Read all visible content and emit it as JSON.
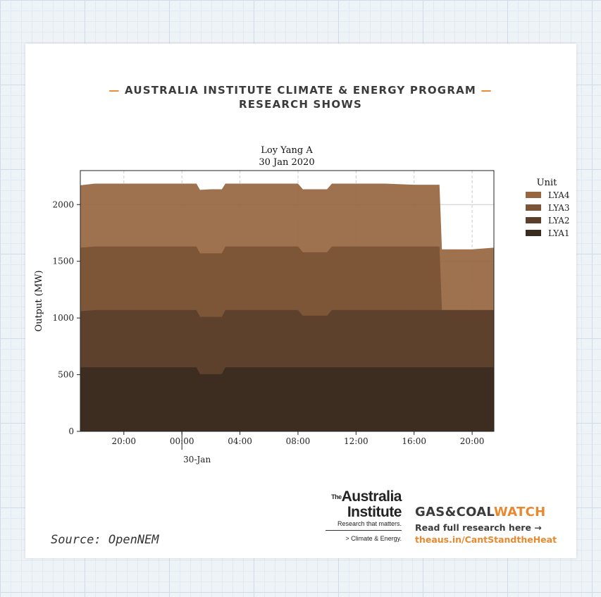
{
  "header": {
    "line1": "AUSTRALIA INSTITUTE CLIMATE & ENERGY PROGRAM",
    "line2": "RESEARCH SHOWS",
    "dash": "—"
  },
  "chart_data": {
    "type": "area",
    "stacked": true,
    "title": "Loy Yang A",
    "subtitle": "30 Jan 2020",
    "ylabel": "Output (MW)",
    "xlabel": "",
    "ylim": [
      0,
      2300
    ],
    "x_range": [
      "2020-01-29T17:00",
      "2020-01-30T21:30"
    ],
    "x_ticks": [
      {
        "time": "2020-01-29T20:00",
        "label": "20:00"
      },
      {
        "time": "2020-01-30T00:00",
        "label": "00:00",
        "major_label": "30-Jan"
      },
      {
        "time": "2020-01-30T04:00",
        "label": "04:00"
      },
      {
        "time": "2020-01-30T08:00",
        "label": "08:00"
      },
      {
        "time": "2020-01-30T12:00",
        "label": "12:00"
      },
      {
        "time": "2020-01-30T16:00",
        "label": "16:00"
      },
      {
        "time": "2020-01-30T20:00",
        "label": "20:00"
      }
    ],
    "y_ticks": [
      0,
      500,
      1000,
      1500,
      2000
    ],
    "grid": true,
    "legend": {
      "title": "Unit",
      "placement": "right"
    },
    "x": [
      "2020-01-29T17:00",
      "2020-01-29T18:00",
      "2020-01-29T20:00",
      "2020-01-29T22:00",
      "2020-01-30T00:00",
      "2020-01-30T01:00",
      "2020-01-30T01:15",
      "2020-01-30T02:00",
      "2020-01-30T02:45",
      "2020-01-30T03:00",
      "2020-01-30T04:00",
      "2020-01-30T05:00",
      "2020-01-30T06:00",
      "2020-01-30T08:00",
      "2020-01-30T08:20",
      "2020-01-30T09:00",
      "2020-01-30T10:00",
      "2020-01-30T10:20",
      "2020-01-30T12:00",
      "2020-01-30T14:00",
      "2020-01-30T16:00",
      "2020-01-30T17:00",
      "2020-01-30T17:45",
      "2020-01-30T17:55",
      "2020-01-30T19:00",
      "2020-01-30T20:00",
      "2020-01-30T21:30"
    ],
    "series": [
      {
        "name": "LYA1",
        "color": "#3a2b1f",
        "values": [
          565,
          565,
          565,
          565,
          565,
          565,
          505,
          505,
          505,
          565,
          565,
          565,
          565,
          565,
          565,
          565,
          565,
          565,
          565,
          565,
          565,
          565,
          565,
          565,
          565,
          565,
          565
        ]
      },
      {
        "name": "LYA2",
        "color": "#5a3f2d",
        "values": [
          495,
          505,
          505,
          505,
          505,
          505,
          505,
          505,
          505,
          505,
          505,
          505,
          505,
          505,
          455,
          455,
          455,
          505,
          505,
          505,
          505,
          505,
          505,
          505,
          505,
          505,
          505
        ]
      },
      {
        "name": "LYA3",
        "color": "#7a5436",
        "values": [
          560,
          560,
          560,
          560,
          560,
          560,
          560,
          560,
          560,
          560,
          560,
          560,
          560,
          560,
          560,
          560,
          560,
          560,
          560,
          560,
          560,
          560,
          560,
          0,
          0,
          0,
          0
        ]
      },
      {
        "name": "LYA4",
        "color": "#976640",
        "values": [
          550,
          555,
          555,
          555,
          555,
          555,
          560,
          565,
          565,
          555,
          555,
          555,
          555,
          555,
          555,
          555,
          555,
          555,
          555,
          555,
          545,
          545,
          545,
          535,
          535,
          535,
          550
        ]
      }
    ]
  },
  "source": "Source: OpenNEM",
  "logo_tai": {
    "sup": "The",
    "line1": "Australia",
    "line2": "Institute",
    "tagline": "Research that matters.",
    "program": "> Climate & Energy."
  },
  "gcw": {
    "brand_a": "GAS&COAL",
    "brand_b": "WATCH",
    "cta": "Read full research here →",
    "link": "theaus.in/CantStandtheHeat"
  },
  "colors": {
    "accent": "#e8892f",
    "text": "#3b3b3b"
  }
}
